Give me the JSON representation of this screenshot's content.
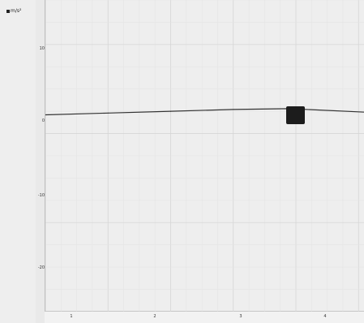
{
  "colors": {
    "background": "#f2f2f2",
    "plot_background": "#eeeeee",
    "grid": "#dcdcdc",
    "axis": "#bdbdbd",
    "series": "#333333",
    "tooltip_bg": "#1c1c1c"
  },
  "header": {
    "unit_label": "m/s²"
  },
  "chart_data": {
    "type": "line",
    "title": "",
    "xlabel": "",
    "ylabel": "",
    "xlim": [
      0,
      5.1
    ],
    "ylim": [
      -20,
      15
    ],
    "x_ticks": [
      "1",
      "2",
      "3",
      "4"
    ],
    "y_ticks": [
      "10",
      "0",
      "-10",
      "-20"
    ],
    "grid": true,
    "series": [
      {
        "values": [
          {
            "x": 0,
            "y": 2.1
          },
          {
            "x": 1,
            "y": 2.3
          },
          {
            "x": 2,
            "y": 2.5
          },
          {
            "x": 3,
            "y": 2.7
          },
          {
            "x": 3.9,
            "y": 2.8
          },
          {
            "x": 5.1,
            "y": 2.4
          }
        ]
      }
    ]
  },
  "tooltip": {
    "lines": [
      "",
      "",
      ""
    ]
  }
}
